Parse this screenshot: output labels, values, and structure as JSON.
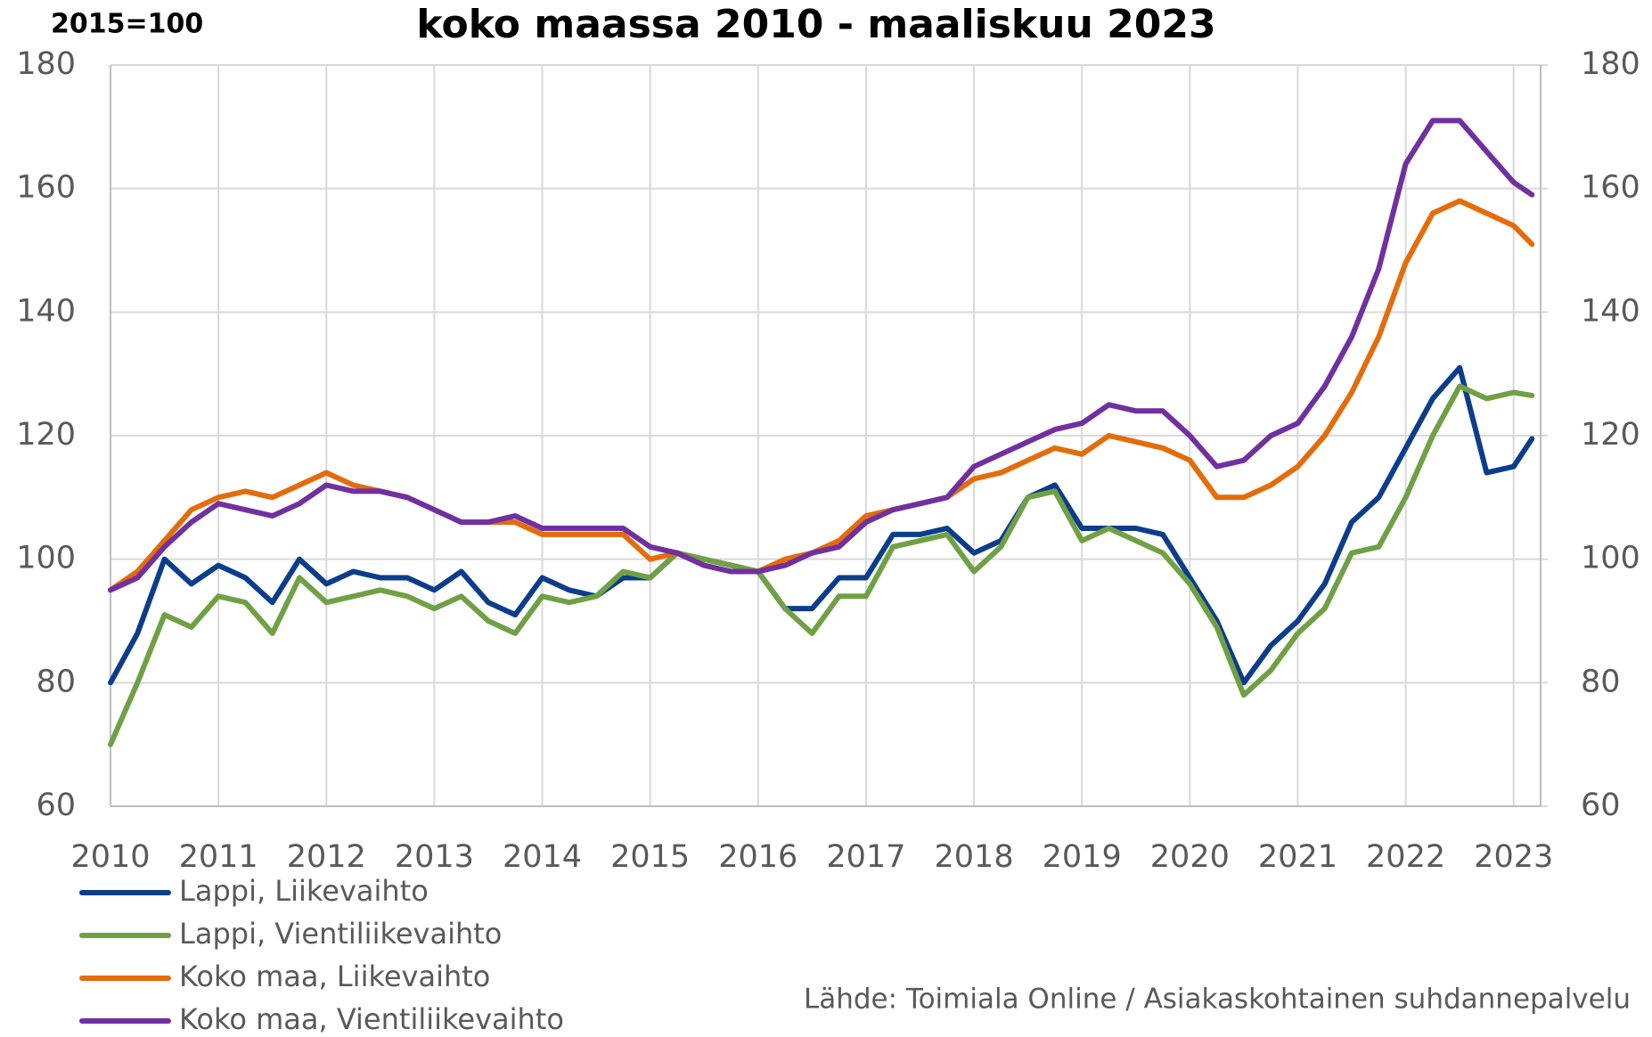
{
  "chart_data": {
    "type": "line",
    "title": "koko maassa 2010 - maaliskuu 2023",
    "subtitle": "2015=100",
    "source": "Lähde: Toimiala Online / Asiakaskohtainen suhdannepalvelu",
    "x": [
      2010,
      2010.25,
      2010.5,
      2010.75,
      2011,
      2011.25,
      2011.5,
      2011.75,
      2012,
      2012.25,
      2012.5,
      2012.75,
      2013,
      2013.25,
      2013.5,
      2013.75,
      2014,
      2014.25,
      2014.5,
      2014.75,
      2015,
      2015.25,
      2015.5,
      2015.75,
      2016,
      2016.25,
      2016.5,
      2016.75,
      2017,
      2017.25,
      2017.5,
      2017.75,
      2018,
      2018.25,
      2018.5,
      2018.75,
      2019,
      2019.25,
      2019.5,
      2019.75,
      2020,
      2020.25,
      2020.5,
      2020.75,
      2021,
      2021.25,
      2021.5,
      2021.75,
      2022,
      2022.25,
      2022.5,
      2022.75,
      2023,
      2023.17
    ],
    "series": [
      {
        "name": "Lappi, Liikevaihto",
        "color": "#0b3d8c",
        "values": [
          80,
          88,
          100,
          96,
          99,
          97,
          93,
          100,
          96,
          98,
          97,
          97,
          95,
          98,
          93,
          91,
          97,
          95,
          94,
          97,
          97,
          101,
          100,
          99,
          98,
          92,
          92,
          97,
          97,
          104,
          104,
          105,
          101,
          103,
          110,
          112,
          105,
          105,
          105,
          104,
          97,
          90,
          80,
          86,
          90,
          96,
          106,
          110,
          118,
          126,
          131,
          114,
          115,
          119.5
        ]
      },
      {
        "name": "Lappi, Vientiliikevaihto",
        "color": "#70a044",
        "values": [
          70,
          80,
          91,
          89,
          94,
          93,
          88,
          97,
          93,
          94,
          95,
          94,
          92,
          94,
          90,
          88,
          94,
          93,
          94,
          98,
          97,
          101,
          100,
          99,
          98,
          92,
          88,
          94,
          94,
          102,
          103,
          104,
          98,
          102,
          110,
          111,
          103,
          105,
          103,
          101,
          96,
          89,
          78,
          82,
          88,
          92,
          101,
          102,
          110,
          120,
          128,
          126,
          127,
          126.5
        ]
      },
      {
        "name": "Koko maa, Liikevaihto",
        "color": "#e46c0a",
        "values": [
          95,
          98,
          103,
          108,
          110,
          111,
          110,
          112,
          114,
          112,
          111,
          110,
          108,
          106,
          106,
          106,
          104,
          104,
          104,
          104,
          100,
          101,
          99,
          98,
          98,
          100,
          101,
          103,
          107,
          108,
          109,
          110,
          113,
          114,
          116,
          118,
          117,
          120,
          119,
          118,
          116,
          110,
          110,
          112,
          115,
          120,
          127,
          136,
          148,
          156,
          158,
          156,
          154,
          151
        ]
      },
      {
        "name": "Koko maa, Vientiliikevaihto",
        "color": "#7030a0",
        "values": [
          95,
          97,
          102,
          106,
          109,
          108,
          107,
          109,
          112,
          111,
          111,
          110,
          108,
          106,
          106,
          107,
          105,
          105,
          105,
          105,
          102,
          101,
          99,
          98,
          98,
          99,
          101,
          102,
          106,
          108,
          109,
          110,
          115,
          117,
          119,
          121,
          122,
          125,
          124,
          124,
          120,
          115,
          116,
          120,
          122,
          128,
          136,
          147,
          164,
          171,
          171,
          166,
          161,
          159
        ]
      }
    ],
    "xlim": [
      2010,
      2023.25
    ],
    "xticks": [
      2010,
      2011,
      2012,
      2013,
      2014,
      2015,
      2016,
      2017,
      2018,
      2019,
      2020,
      2021,
      2022,
      2023
    ],
    "ylim": [
      60,
      180
    ],
    "yticks": [
      60,
      80,
      100,
      120,
      140,
      160,
      180
    ],
    "y2lim": [
      60,
      180
    ],
    "y2ticks": [
      60,
      80,
      100,
      120,
      140,
      160,
      180
    ],
    "grid": true,
    "legend": "bottom-left"
  }
}
